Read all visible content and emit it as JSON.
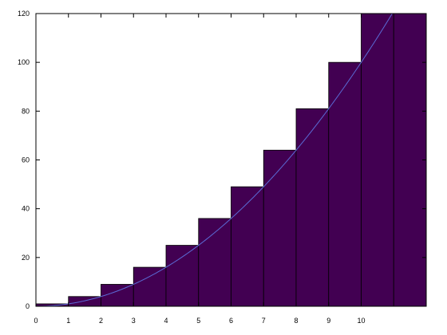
{
  "chart_data": {
    "type": "bar",
    "x": [
      0,
      1,
      2,
      3,
      4,
      5,
      6,
      7,
      8,
      9,
      10,
      11
    ],
    "values": [
      1,
      4,
      9,
      16,
      25,
      36,
      49,
      64,
      81,
      100,
      121,
      121
    ],
    "curve": {
      "type": "line",
      "function": "y = x^2",
      "x_range": [
        0,
        11
      ]
    },
    "x_tick_labels": [
      "0",
      "1",
      "2",
      "3",
      "4",
      "5",
      "6",
      "7",
      "8",
      "9",
      "10"
    ],
    "y_tick_labels": [
      "0",
      "20",
      "40",
      "60",
      "80",
      "100",
      "120"
    ],
    "xlim": [
      0,
      12
    ],
    "ylim": [
      0,
      120
    ],
    "grid": false,
    "bar_color": "#420052",
    "bar_edge_color": "#000000",
    "curve_color": "#5b6bd6",
    "title": "",
    "xlabel": "",
    "ylabel": ""
  }
}
